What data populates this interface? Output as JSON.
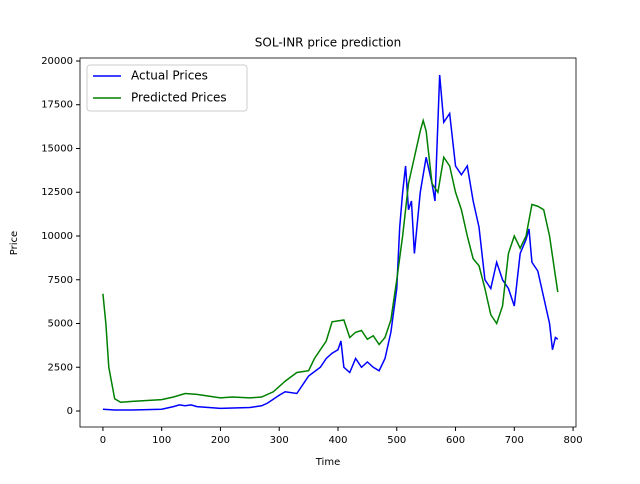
{
  "chart_data": {
    "type": "line",
    "title": "SOL-INR price prediction",
    "x_label": "Time",
    "y_label": "Price",
    "xlim": [
      -39,
      805
    ],
    "ylim": [
      -914,
      20171
    ],
    "xticks": [
      0,
      100,
      200,
      300,
      400,
      500,
      600,
      700,
      800
    ],
    "yticks": [
      0,
      2500,
      5000,
      7500,
      10000,
      12500,
      15000,
      17500,
      20000
    ],
    "legend": "upper left",
    "series": [
      {
        "name": "Actual Prices",
        "color": "#0000ff",
        "x": [
          0,
          20,
          50,
          100,
          120,
          130,
          140,
          150,
          160,
          200,
          250,
          270,
          280,
          300,
          310,
          330,
          350,
          370,
          380,
          390,
          400,
          405,
          410,
          420,
          430,
          440,
          450,
          460,
          470,
          480,
          490,
          500,
          505,
          510,
          515,
          520,
          525,
          530,
          540,
          550,
          560,
          565,
          570,
          573,
          580,
          590,
          600,
          610,
          620,
          630,
          640,
          650,
          660,
          670,
          680,
          690,
          700,
          710,
          720,
          725,
          730,
          740,
          750,
          760,
          765,
          770,
          774
        ],
        "values": [
          100,
          60,
          60,
          100,
          250,
          350,
          300,
          350,
          250,
          150,
          200,
          300,
          450,
          900,
          1100,
          1000,
          2000,
          2500,
          3000,
          3300,
          3500,
          4000,
          2500,
          2200,
          3000,
          2500,
          2800,
          2500,
          2300,
          3000,
          4500,
          7000,
          10500,
          12500,
          14000,
          11500,
          12000,
          9000,
          12500,
          14500,
          13000,
          12000,
          16500,
          19200,
          16500,
          17000,
          14000,
          13500,
          14000,
          12000,
          10500,
          7500,
          7000,
          8500,
          7500,
          7000,
          6000,
          9000,
          9800,
          10400,
          8500,
          8000,
          6500,
          5000,
          3500,
          4200,
          4100
        ]
      },
      {
        "name": "Predicted Prices",
        "color": "#008000",
        "x": [
          0,
          5,
          10,
          20,
          30,
          50,
          100,
          120,
          140,
          160,
          180,
          200,
          220,
          250,
          270,
          290,
          310,
          330,
          350,
          360,
          380,
          390,
          410,
          420,
          430,
          440,
          450,
          460,
          470,
          480,
          490,
          500,
          510,
          520,
          530,
          540,
          545,
          550,
          560,
          570,
          580,
          590,
          600,
          610,
          620,
          630,
          640,
          650,
          660,
          670,
          680,
          690,
          700,
          710,
          720,
          730,
          740,
          750,
          760,
          770,
          774
        ],
        "values": [
          6700,
          5000,
          2500,
          700,
          500,
          550,
          650,
          800,
          1000,
          950,
          850,
          750,
          800,
          750,
          800,
          1100,
          1700,
          2200,
          2300,
          3000,
          4000,
          5100,
          5200,
          4200,
          4500,
          4600,
          4100,
          4300,
          3800,
          4200,
          5200,
          7500,
          10000,
          13000,
          14500,
          16000,
          16600,
          16000,
          13000,
          12500,
          14500,
          14000,
          12500,
          11500,
          10000,
          8700,
          8300,
          7000,
          5500,
          5000,
          6000,
          9000,
          10000,
          9300,
          10000,
          11800,
          11700,
          11500,
          10000,
          7700,
          6800
        ]
      }
    ]
  }
}
